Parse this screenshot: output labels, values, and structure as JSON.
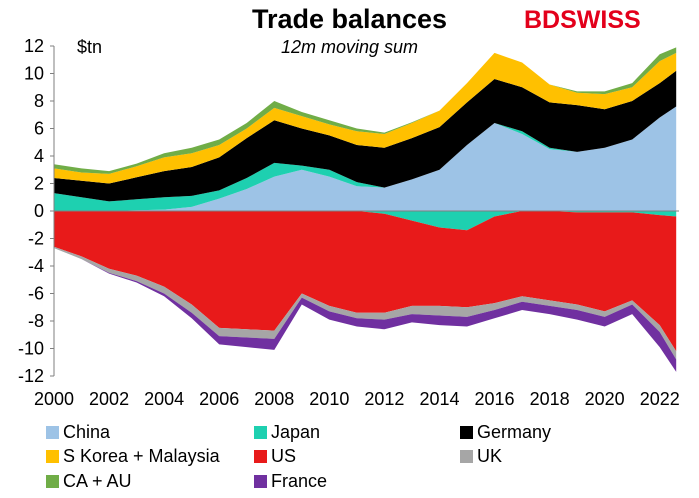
{
  "chart_data": {
    "type": "area",
    "title": "Trade balances",
    "subtitle": "12m moving sum",
    "unit_label": "$tn",
    "logo_text": [
      "BD",
      "SWISS"
    ],
    "y_ticks": [
      "12",
      "10",
      "8",
      "6",
      "4",
      "2",
      "0",
      "-2",
      "-4",
      "-6",
      "-8",
      "-10",
      "-12"
    ],
    "x_ticks": [
      "2000",
      "2002",
      "2004",
      "2006",
      "2008",
      "2010",
      "2012",
      "2014",
      "2016",
      "2018",
      "2020",
      "2022"
    ],
    "ylim": [
      -12,
      12
    ],
    "xlim": [
      2000,
      2022.7
    ],
    "grid": false,
    "legend_position": "bottom",
    "x": [
      2000,
      2001,
      2002,
      2003,
      2004,
      2005,
      2006,
      2007,
      2008,
      2009,
      2010,
      2011,
      2012,
      2013,
      2014,
      2015,
      2016,
      2017,
      2018,
      2019,
      2020,
      2021,
      2022,
      2022.6
    ],
    "positive_series": [
      {
        "name": "China",
        "color": "#9dc3e6",
        "values": [
          0.0,
          0.0,
          0.0,
          0.05,
          0.1,
          0.3,
          0.9,
          1.6,
          2.5,
          3.0,
          2.5,
          1.8,
          1.7,
          2.3,
          3.0,
          4.8,
          6.4,
          5.6,
          4.5,
          4.3,
          4.6,
          5.2,
          6.8,
          7.6
        ]
      },
      {
        "name": "Japan",
        "color": "#1ed0b0",
        "values": [
          1.3,
          1.0,
          0.7,
          0.8,
          0.9,
          0.8,
          0.6,
          0.8,
          1.0,
          0.3,
          0.5,
          0.3,
          0.0,
          0.0,
          0.0,
          0.0,
          0.0,
          0.2,
          0.1,
          0.0,
          0.0,
          0.0,
          0.0,
          0.0
        ]
      },
      {
        "name": "Germany",
        "color": "#000000",
        "values": [
          1.1,
          1.2,
          1.3,
          1.6,
          1.9,
          2.1,
          2.4,
          2.9,
          3.1,
          2.7,
          2.5,
          2.7,
          2.9,
          3.0,
          3.1,
          3.1,
          3.2,
          3.2,
          3.3,
          3.4,
          2.8,
          2.8,
          2.5,
          2.6
        ]
      },
      {
        "name": "S Korea + Malaysia",
        "color": "#ffc000",
        "values": [
          0.7,
          0.6,
          0.7,
          0.8,
          1.0,
          1.0,
          0.9,
          0.7,
          0.9,
          0.9,
          0.8,
          1.0,
          1.0,
          1.1,
          1.2,
          1.4,
          1.9,
          1.8,
          1.3,
          0.9,
          1.1,
          1.0,
          1.6,
          1.3
        ]
      },
      {
        "name": "CA + AU",
        "color": "#70ad47",
        "values": [
          0.3,
          0.3,
          0.2,
          0.2,
          0.3,
          0.4,
          0.4,
          0.4,
          0.5,
          0.3,
          0.3,
          0.2,
          0.1,
          0.05,
          0.0,
          0.0,
          0.0,
          0.0,
          0.0,
          0.1,
          0.2,
          0.3,
          0.5,
          0.4
        ]
      }
    ],
    "negative_series": [
      {
        "name": "Japan",
        "color": "#1ed0b0",
        "values": [
          0,
          0,
          0,
          0,
          0,
          0,
          0,
          0,
          0,
          0,
          0,
          0,
          -0.2,
          -0.7,
          -1.2,
          -1.4,
          -0.4,
          0,
          0,
          -0.1,
          -0.1,
          -0.1,
          -0.3,
          -0.4
        ]
      },
      {
        "name": "US",
        "color": "#e81a1a",
        "values": [
          -2.6,
          -3.3,
          -4.2,
          -4.7,
          -5.5,
          -6.8,
          -8.5,
          -8.6,
          -8.7,
          -6.0,
          -6.9,
          -7.4,
          -7.2,
          -6.2,
          -5.7,
          -5.6,
          -6.3,
          -6.2,
          -6.5,
          -6.7,
          -7.2,
          -6.4,
          -8.0,
          -9.8
        ]
      },
      {
        "name": "UK",
        "color": "#a6a6a6",
        "values": [
          -0.1,
          -0.2,
          -0.3,
          -0.4,
          -0.5,
          -0.6,
          -0.6,
          -0.6,
          -0.6,
          -0.3,
          -0.4,
          -0.4,
          -0.5,
          -0.6,
          -0.7,
          -0.7,
          -0.5,
          -0.4,
          -0.4,
          -0.4,
          -0.4,
          -0.3,
          -0.5,
          -0.6
        ]
      },
      {
        "name": "France",
        "color": "#7030a0",
        "values": [
          0,
          0,
          -0.05,
          -0.1,
          -0.2,
          -0.4,
          -0.6,
          -0.7,
          -0.8,
          -0.5,
          -0.6,
          -0.6,
          -0.7,
          -0.6,
          -0.7,
          -0.7,
          -0.6,
          -0.6,
          -0.6,
          -0.7,
          -0.7,
          -0.7,
          -1.1,
          -0.9
        ]
      }
    ],
    "legend": [
      {
        "name": "China",
        "color": "#9dc3e6"
      },
      {
        "name": "Japan",
        "color": "#1ed0b0"
      },
      {
        "name": "Germany",
        "color": "#000000"
      },
      {
        "name": "S Korea + Malaysia",
        "color": "#ffc000"
      },
      {
        "name": "US",
        "color": "#e81a1a"
      },
      {
        "name": "UK",
        "color": "#a6a6a6"
      },
      {
        "name": "CA + AU",
        "color": "#70ad47"
      },
      {
        "name": "France",
        "color": "#7030a0"
      }
    ]
  }
}
